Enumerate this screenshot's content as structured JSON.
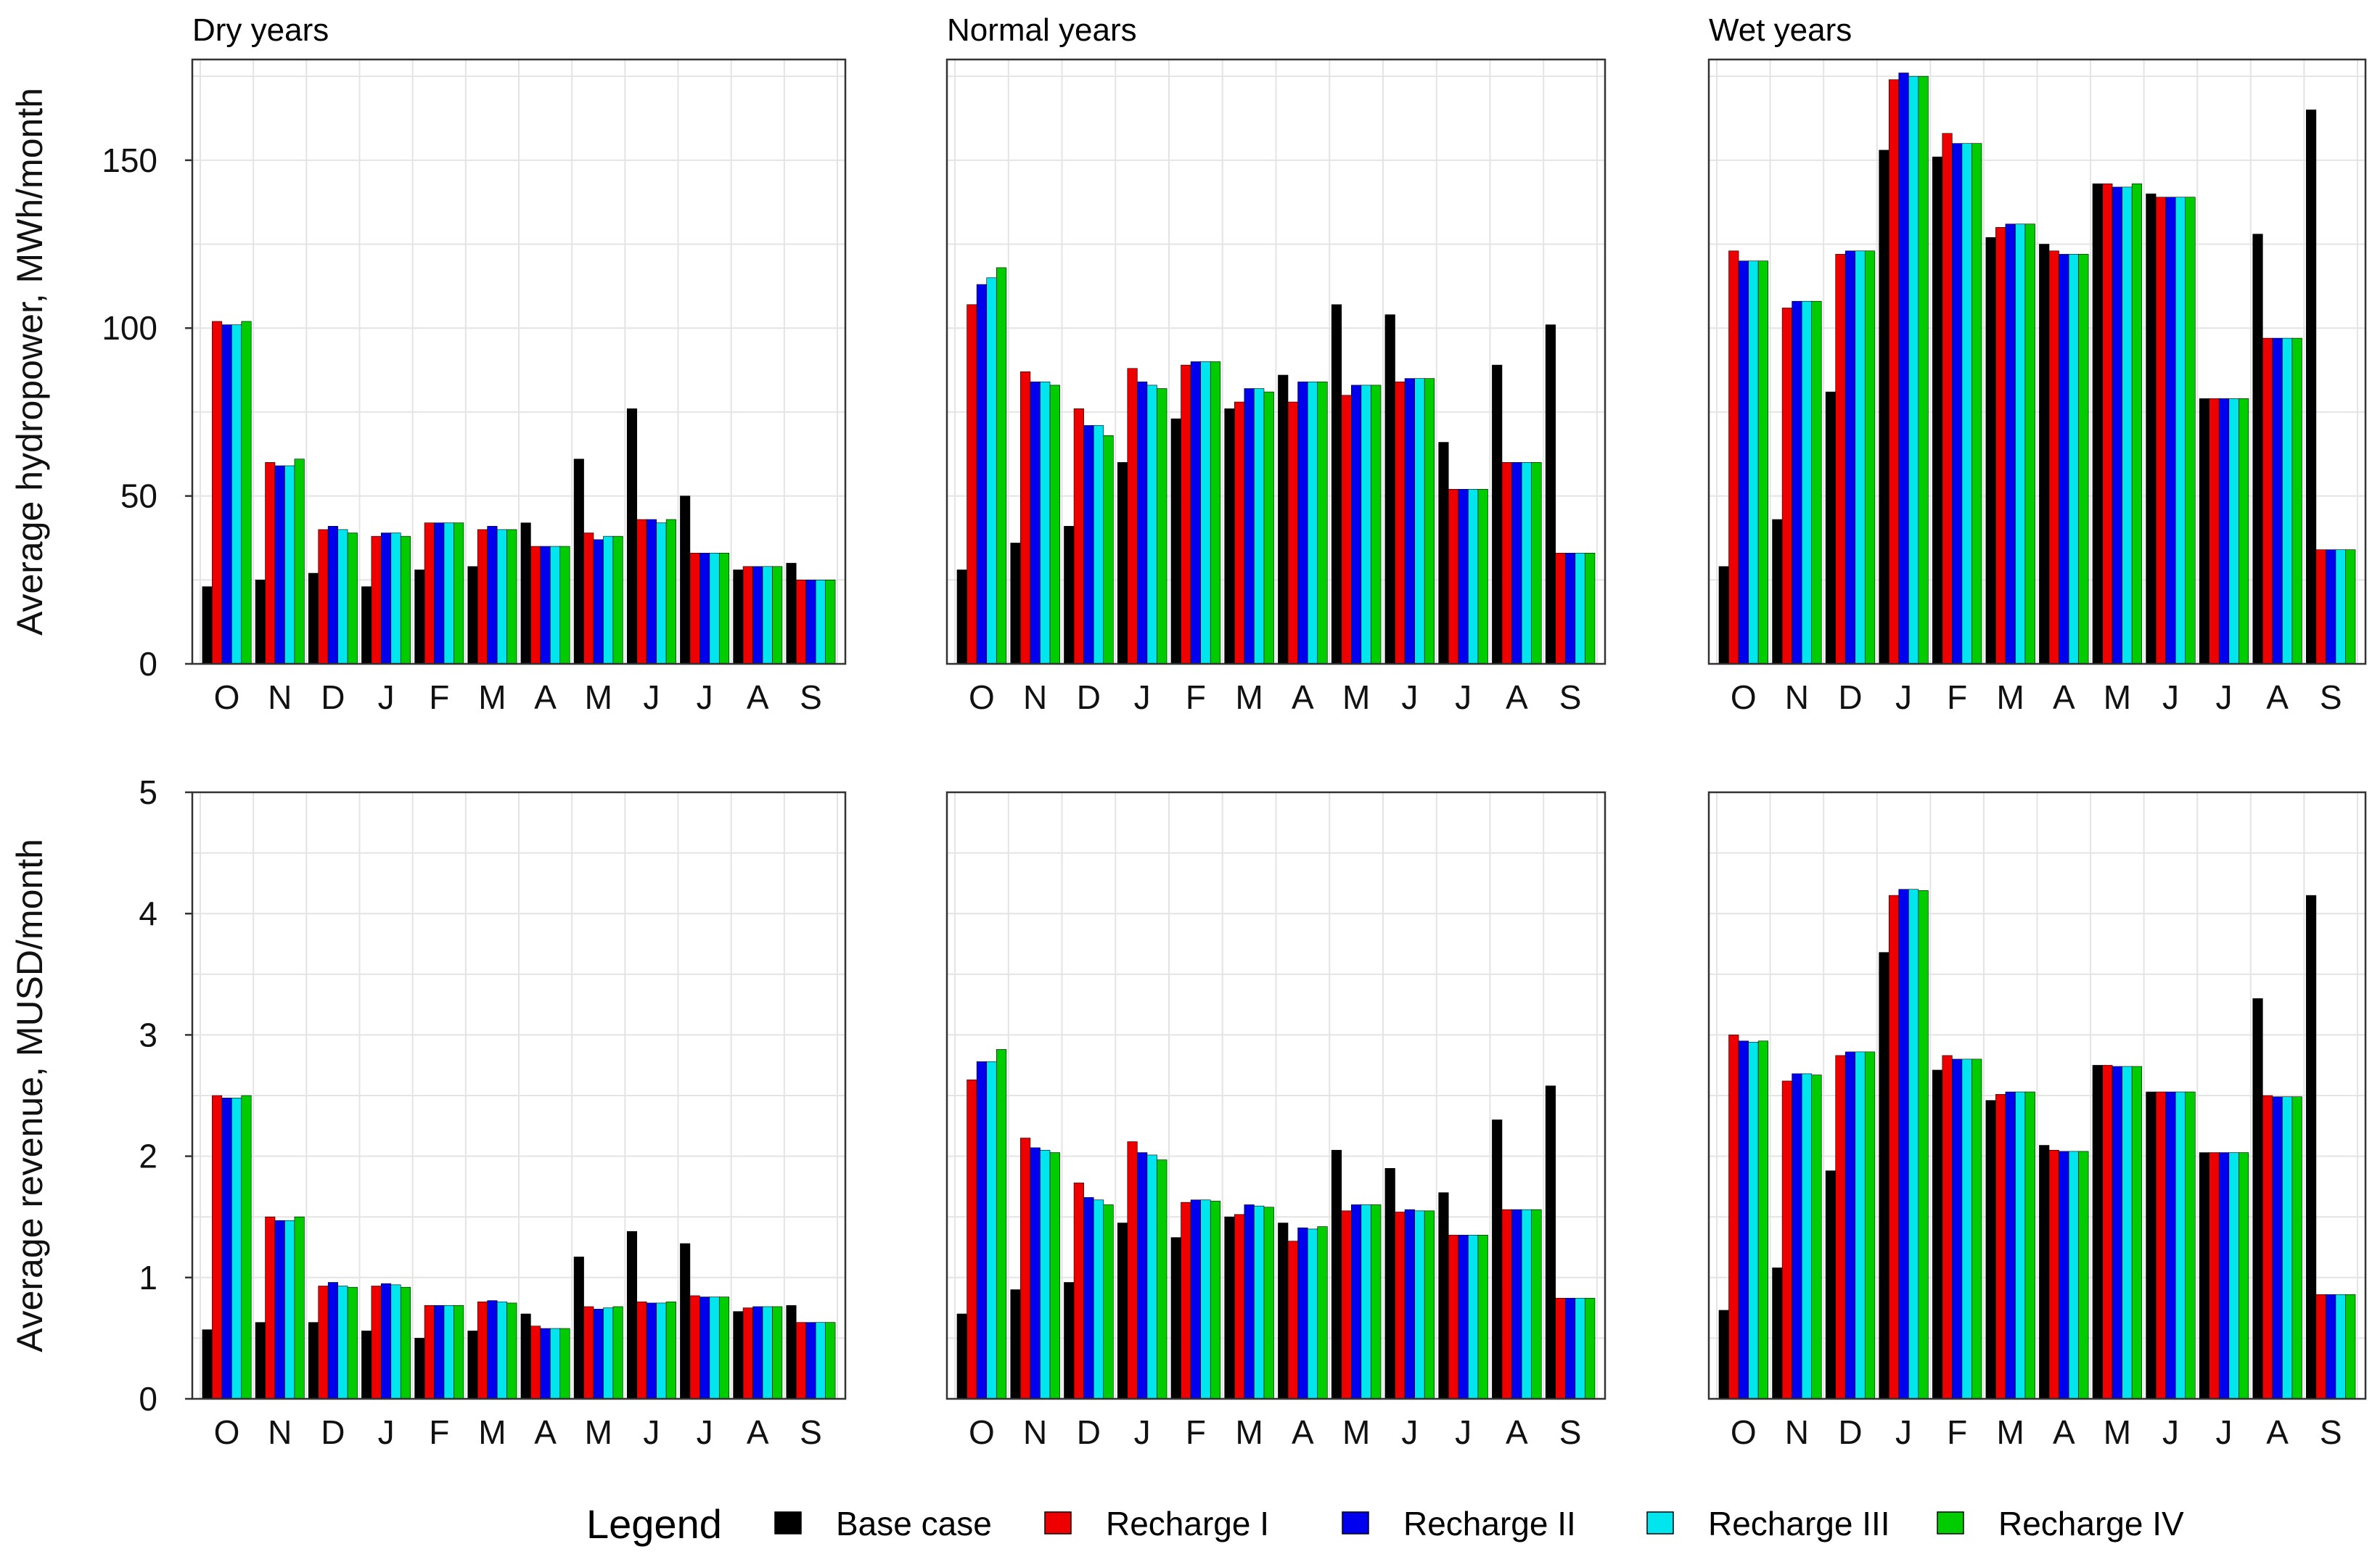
{
  "chart_data": {
    "type": "bar",
    "months": [
      "O",
      "N",
      "D",
      "J",
      "F",
      "M",
      "A",
      "M",
      "J",
      "J",
      "A",
      "S"
    ],
    "series_names": [
      "Base case",
      "Recharge I",
      "Recharge II",
      "Recharge III",
      "Recharge IV"
    ],
    "colors": [
      "#000000",
      "#ee0000",
      "#0000ee",
      "#00e5ee",
      "#00cc00"
    ],
    "legend": {
      "title": "Legend",
      "position": "bottom-center"
    },
    "rows": [
      {
        "ylabel": "Average hydropower, MWh/month",
        "ylim": [
          0,
          180
        ],
        "yticks": [
          0,
          50,
          100,
          150
        ],
        "panels": [
          {
            "title": "Dry years",
            "series": [
              {
                "name": "Base case",
                "values": [
                  23,
                  25,
                  27,
                  23,
                  28,
                  29,
                  42,
                  61,
                  76,
                  50,
                  28,
                  30
                ]
              },
              {
                "name": "Recharge I",
                "values": [
                  102,
                  60,
                  40,
                  38,
                  42,
                  40,
                  35,
                  39,
                  43,
                  33,
                  29,
                  25
                ]
              },
              {
                "name": "Recharge II",
                "values": [
                  101,
                  59,
                  41,
                  39,
                  42,
                  41,
                  35,
                  37,
                  43,
                  33,
                  29,
                  25
                ]
              },
              {
                "name": "Recharge III",
                "values": [
                  101,
                  59,
                  40,
                  39,
                  42,
                  40,
                  35,
                  38,
                  42,
                  33,
                  29,
                  25
                ]
              },
              {
                "name": "Recharge IV",
                "values": [
                  102,
                  61,
                  39,
                  38,
                  42,
                  40,
                  35,
                  38,
                  43,
                  33,
                  29,
                  25
                ]
              }
            ]
          },
          {
            "title": "Normal years",
            "series": [
              {
                "name": "Base case",
                "values": [
                  28,
                  36,
                  41,
                  60,
                  73,
                  76,
                  86,
                  107,
                  104,
                  66,
                  89,
                  101
                ]
              },
              {
                "name": "Recharge I",
                "values": [
                  107,
                  87,
                  76,
                  88,
                  89,
                  78,
                  78,
                  80,
                  84,
                  52,
                  60,
                  33
                ]
              },
              {
                "name": "Recharge II",
                "values": [
                  113,
                  84,
                  71,
                  84,
                  90,
                  82,
                  84,
                  83,
                  85,
                  52,
                  60,
                  33
                ]
              },
              {
                "name": "Recharge III",
                "values": [
                  115,
                  84,
                  71,
                  83,
                  90,
                  82,
                  84,
                  83,
                  85,
                  52,
                  60,
                  33
                ]
              },
              {
                "name": "Recharge IV",
                "values": [
                  118,
                  83,
                  68,
                  82,
                  90,
                  81,
                  84,
                  83,
                  85,
                  52,
                  60,
                  33
                ]
              }
            ]
          },
          {
            "title": "Wet years",
            "series": [
              {
                "name": "Base case",
                "values": [
                  29,
                  43,
                  81,
                  153,
                  151,
                  127,
                  125,
                  143,
                  140,
                  79,
                  128,
                  165
                ]
              },
              {
                "name": "Recharge I",
                "values": [
                  123,
                  106,
                  122,
                  174,
                  158,
                  130,
                  123,
                  143,
                  139,
                  79,
                  97,
                  34
                ]
              },
              {
                "name": "Recharge II",
                "values": [
                  120,
                  108,
                  123,
                  176,
                  155,
                  131,
                  122,
                  142,
                  139,
                  79,
                  97,
                  34
                ]
              },
              {
                "name": "Recharge III",
                "values": [
                  120,
                  108,
                  123,
                  175,
                  155,
                  131,
                  122,
                  142,
                  139,
                  79,
                  97,
                  34
                ]
              },
              {
                "name": "Recharge IV",
                "values": [
                  120,
                  108,
                  123,
                  175,
                  155,
                  131,
                  122,
                  143,
                  139,
                  79,
                  97,
                  34
                ]
              }
            ]
          }
        ]
      },
      {
        "ylabel": "Average revenue, MUSD/month",
        "ylim": [
          0,
          5
        ],
        "yticks": [
          0,
          1,
          2,
          3,
          4,
          5
        ],
        "panels": [
          {
            "title": "",
            "series": [
              {
                "name": "Base case",
                "values": [
                  0.57,
                  0.63,
                  0.63,
                  0.56,
                  0.5,
                  0.56,
                  0.7,
                  1.17,
                  1.38,
                  1.28,
                  0.72,
                  0.77
                ]
              },
              {
                "name": "Recharge I",
                "values": [
                  2.5,
                  1.5,
                  0.93,
                  0.93,
                  0.77,
                  0.8,
                  0.6,
                  0.76,
                  0.8,
                  0.85,
                  0.75,
                  0.63
                ]
              },
              {
                "name": "Recharge II",
                "values": [
                  2.48,
                  1.47,
                  0.96,
                  0.95,
                  0.77,
                  0.81,
                  0.58,
                  0.74,
                  0.79,
                  0.84,
                  0.76,
                  0.63
                ]
              },
              {
                "name": "Recharge III",
                "values": [
                  2.48,
                  1.47,
                  0.93,
                  0.94,
                  0.77,
                  0.8,
                  0.58,
                  0.75,
                  0.79,
                  0.84,
                  0.76,
                  0.63
                ]
              },
              {
                "name": "Recharge IV",
                "values": [
                  2.5,
                  1.5,
                  0.92,
                  0.92,
                  0.77,
                  0.79,
                  0.58,
                  0.76,
                  0.8,
                  0.84,
                  0.76,
                  0.63
                ]
              }
            ]
          },
          {
            "title": "",
            "series": [
              {
                "name": "Base case",
                "values": [
                  0.7,
                  0.9,
                  0.96,
                  1.45,
                  1.33,
                  1.5,
                  1.45,
                  2.05,
                  1.9,
                  1.7,
                  2.3,
                  2.58
                ]
              },
              {
                "name": "Recharge I",
                "values": [
                  2.63,
                  2.15,
                  1.78,
                  2.12,
                  1.62,
                  1.52,
                  1.3,
                  1.55,
                  1.54,
                  1.35,
                  1.56,
                  0.83
                ]
              },
              {
                "name": "Recharge II",
                "values": [
                  2.78,
                  2.07,
                  1.66,
                  2.03,
                  1.64,
                  1.6,
                  1.41,
                  1.6,
                  1.56,
                  1.35,
                  1.56,
                  0.83
                ]
              },
              {
                "name": "Recharge III",
                "values": [
                  2.78,
                  2.05,
                  1.64,
                  2.01,
                  1.64,
                  1.59,
                  1.4,
                  1.6,
                  1.55,
                  1.35,
                  1.56,
                  0.83
                ]
              },
              {
                "name": "Recharge IV",
                "values": [
                  2.88,
                  2.03,
                  1.6,
                  1.97,
                  1.63,
                  1.58,
                  1.42,
                  1.6,
                  1.55,
                  1.35,
                  1.56,
                  0.83
                ]
              }
            ]
          },
          {
            "title": "",
            "series": [
              {
                "name": "Base case",
                "values": [
                  0.73,
                  1.08,
                  1.88,
                  3.68,
                  2.71,
                  2.46,
                  2.09,
                  2.75,
                  2.53,
                  2.03,
                  3.3,
                  4.15
                ]
              },
              {
                "name": "Recharge I",
                "values": [
                  3.0,
                  2.62,
                  2.83,
                  4.15,
                  2.83,
                  2.51,
                  2.05,
                  2.75,
                  2.53,
                  2.03,
                  2.5,
                  0.86
                ]
              },
              {
                "name": "Recharge II",
                "values": [
                  2.95,
                  2.68,
                  2.86,
                  4.2,
                  2.8,
                  2.53,
                  2.04,
                  2.74,
                  2.53,
                  2.03,
                  2.49,
                  0.86
                ]
              },
              {
                "name": "Recharge III",
                "values": [
                  2.94,
                  2.68,
                  2.86,
                  4.2,
                  2.8,
                  2.53,
                  2.04,
                  2.74,
                  2.53,
                  2.03,
                  2.49,
                  0.86
                ]
              },
              {
                "name": "Recharge IV",
                "values": [
                  2.95,
                  2.67,
                  2.86,
                  4.19,
                  2.8,
                  2.53,
                  2.04,
                  2.74,
                  2.53,
                  2.03,
                  2.49,
                  0.86
                ]
              }
            ]
          }
        ]
      }
    ]
  }
}
